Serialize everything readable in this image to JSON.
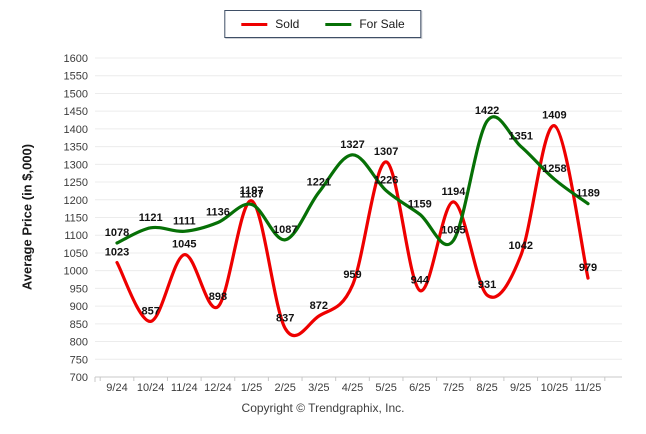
{
  "legend": {
    "items": [
      {
        "label": "Sold",
        "color": "#ee0000"
      },
      {
        "label": "For Sale",
        "color": "#067006"
      }
    ]
  },
  "footer": {
    "text": "Copyright © Trendgraphix, Inc."
  },
  "chart_data": {
    "type": "line",
    "title": "",
    "xlabel": "",
    "ylabel": "Average Price (in $,000)",
    "categories": [
      "9/24",
      "10/24",
      "11/24",
      "12/24",
      "1/25",
      "2/25",
      "3/25",
      "4/25",
      "5/25",
      "6/25",
      "7/25",
      "8/25",
      "9/25",
      "10/25",
      "11/25"
    ],
    "series": [
      {
        "name": "Sold",
        "color": "#ee0000",
        "values": [
          1023,
          857,
          1045,
          898,
          1197,
          837,
          872,
          959,
          1307,
          944,
          1194,
          931,
          1042,
          1409,
          979
        ]
      },
      {
        "name": "For Sale",
        "color": "#067006",
        "values": [
          1078,
          1121,
          1111,
          1136,
          1187,
          1087,
          1221,
          1327,
          1226,
          1159,
          1085,
          1422,
          1351,
          1258,
          1189
        ]
      }
    ],
    "ylim": [
      700,
      1600
    ],
    "ytick_step": 50,
    "grid": true,
    "data_labels": true,
    "legend_position": "top-center",
    "gridline_color": "#ececec",
    "axis_line_color": "#c8c8c8",
    "axis_text_color": "#3c3c3c",
    "data_label_color": "#121212"
  }
}
